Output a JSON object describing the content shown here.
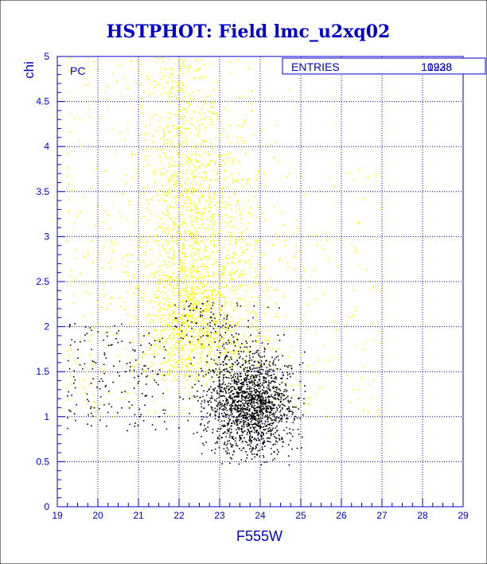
{
  "colors": {
    "title": "#0000cc",
    "axis": "#0000cc",
    "grid": "#0000cc",
    "yellow_points": "#ffff00",
    "black_points": "#000000",
    "background": "#ffffff"
  },
  "chart_data": {
    "type": "scatter",
    "title": "HSTPHOT: Field lmc_u2xq02",
    "xlabel": "F555W",
    "ylabel": "chi",
    "panel_label": "PC",
    "stats_box": {
      "label": "ENTRIES",
      "values": [
        "10228",
        "1938"
      ]
    },
    "xlim": [
      19,
      29
    ],
    "ylim": [
      0,
      5
    ],
    "x_ticks": [
      "19",
      "20",
      "21",
      "22",
      "23",
      "24",
      "25",
      "26",
      "27",
      "28",
      "29"
    ],
    "y_ticks": [
      "0",
      "0.5",
      "1",
      "1.5",
      "2",
      "2.5",
      "3",
      "3.5",
      "4",
      "4.5",
      "5"
    ],
    "grid": true,
    "series": [
      {
        "color": "yellow",
        "entries": 10228,
        "distribution": "broad band peaking near F555W 22-23, chi mostly 1.2-5"
      },
      {
        "color": "black",
        "entries": 1938,
        "distribution": "dense clump near F555W 23.3-24.3, chi 0.6-1.8"
      }
    ]
  }
}
